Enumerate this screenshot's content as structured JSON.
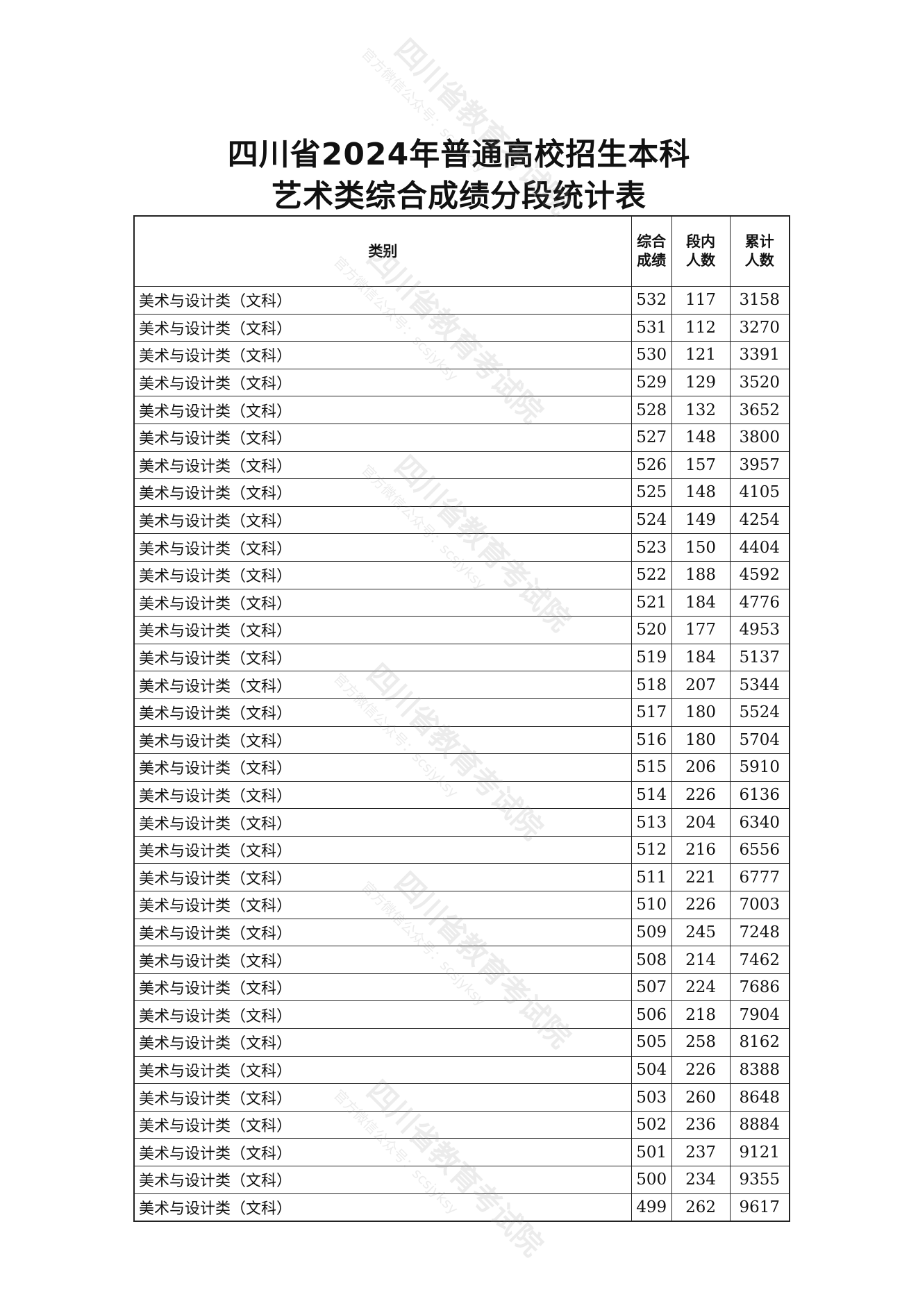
{
  "title": {
    "line1": "四川省2024年普通高校招生本科",
    "line2": "艺术类综合成绩分段统计表"
  },
  "watermark": {
    "name": "四川省教育考试院",
    "wechat": "官方微信公众号：scsjyksy"
  },
  "table": {
    "headers": {
      "category": "类别",
      "score": "综合成绩",
      "in_segment": "段内人数",
      "cumulative": "累计人数"
    },
    "rows": [
      [
        "美术与设计类（文科）",
        "532",
        "117",
        "3158"
      ],
      [
        "美术与设计类（文科）",
        "531",
        "112",
        "3270"
      ],
      [
        "美术与设计类（文科）",
        "530",
        "121",
        "3391"
      ],
      [
        "美术与设计类（文科）",
        "529",
        "129",
        "3520"
      ],
      [
        "美术与设计类（文科）",
        "528",
        "132",
        "3652"
      ],
      [
        "美术与设计类（文科）",
        "527",
        "148",
        "3800"
      ],
      [
        "美术与设计类（文科）",
        "526",
        "157",
        "3957"
      ],
      [
        "美术与设计类（文科）",
        "525",
        "148",
        "4105"
      ],
      [
        "美术与设计类（文科）",
        "524",
        "149",
        "4254"
      ],
      [
        "美术与设计类（文科）",
        "523",
        "150",
        "4404"
      ],
      [
        "美术与设计类（文科）",
        "522",
        "188",
        "4592"
      ],
      [
        "美术与设计类（文科）",
        "521",
        "184",
        "4776"
      ],
      [
        "美术与设计类（文科）",
        "520",
        "177",
        "4953"
      ],
      [
        "美术与设计类（文科）",
        "519",
        "184",
        "5137"
      ],
      [
        "美术与设计类（文科）",
        "518",
        "207",
        "5344"
      ],
      [
        "美术与设计类（文科）",
        "517",
        "180",
        "5524"
      ],
      [
        "美术与设计类（文科）",
        "516",
        "180",
        "5704"
      ],
      [
        "美术与设计类（文科）",
        "515",
        "206",
        "5910"
      ],
      [
        "美术与设计类（文科）",
        "514",
        "226",
        "6136"
      ],
      [
        "美术与设计类（文科）",
        "513",
        "204",
        "6340"
      ],
      [
        "美术与设计类（文科）",
        "512",
        "216",
        "6556"
      ],
      [
        "美术与设计类（文科）",
        "511",
        "221",
        "6777"
      ],
      [
        "美术与设计类（文科）",
        "510",
        "226",
        "7003"
      ],
      [
        "美术与设计类（文科）",
        "509",
        "245",
        "7248"
      ],
      [
        "美术与设计类（文科）",
        "508",
        "214",
        "7462"
      ],
      [
        "美术与设计类（文科）",
        "507",
        "224",
        "7686"
      ],
      [
        "美术与设计类（文科）",
        "506",
        "218",
        "7904"
      ],
      [
        "美术与设计类（文科）",
        "505",
        "258",
        "8162"
      ],
      [
        "美术与设计类（文科）",
        "504",
        "226",
        "8388"
      ],
      [
        "美术与设计类（文科）",
        "503",
        "260",
        "8648"
      ],
      [
        "美术与设计类（文科）",
        "502",
        "236",
        "8884"
      ],
      [
        "美术与设计类（文科）",
        "501",
        "237",
        "9121"
      ],
      [
        "美术与设计类（文科）",
        "500",
        "234",
        "9355"
      ],
      [
        "美术与设计类（文科）",
        "499",
        "262",
        "9617"
      ]
    ]
  }
}
